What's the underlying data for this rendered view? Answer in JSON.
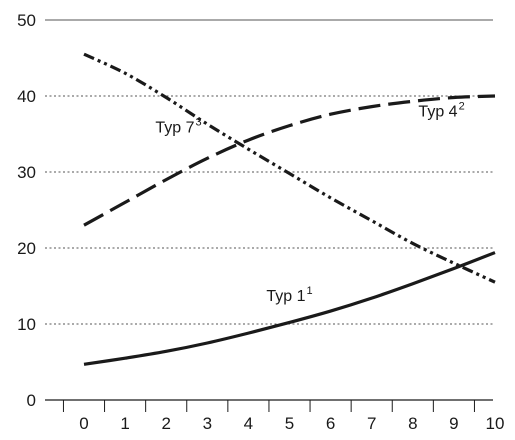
{
  "chart_data": {
    "type": "line",
    "title": "",
    "xlabel": "",
    "ylabel": "",
    "xlim": [
      -1,
      10
    ],
    "ylim": [
      0,
      50
    ],
    "x_ticks": [
      "0",
      "1",
      "2",
      "3",
      "4",
      "5",
      "6",
      "7",
      "8",
      "9",
      "10"
    ],
    "y_ticks": [
      "0",
      "10",
      "20",
      "30",
      "40",
      "50"
    ],
    "grid": "horizontal dotted",
    "legend": "none (inline series labels)",
    "series": [
      {
        "name": "Typ 1",
        "sup": "1",
        "label_anchor": [
          5,
          13
        ],
        "style": "solid",
        "color": "#1a1a1a",
        "x": [
          0,
          1,
          2,
          3,
          4,
          5,
          6,
          7,
          8,
          9,
          10
        ],
        "values": [
          4.7,
          5.5,
          6.4,
          7.5,
          8.8,
          10.2,
          11.7,
          13.4,
          15.3,
          17.3,
          19.4
        ]
      },
      {
        "name": "Typ 4",
        "sup": "2",
        "label_anchor": [
          8.7,
          37.3
        ],
        "style": "dashed",
        "color": "#1a1a1a",
        "x": [
          0,
          1,
          2,
          3,
          4,
          5,
          6,
          7,
          8,
          9,
          10
        ],
        "values": [
          23,
          26,
          29,
          31.8,
          34.2,
          36.1,
          37.6,
          38.6,
          39.3,
          39.8,
          40
        ]
      },
      {
        "name": "Typ 7",
        "sup": "3",
        "label_anchor": [
          2.3,
          35.2
        ],
        "style": "dash-dot-dot",
        "color": "#1a1a1a",
        "x": [
          0,
          1,
          2,
          3,
          4,
          5,
          6,
          7,
          8,
          9,
          10
        ],
        "values": [
          45.5,
          43,
          39.8,
          36.3,
          33,
          29.8,
          26.6,
          23.6,
          20.6,
          18,
          15.5
        ]
      }
    ]
  }
}
